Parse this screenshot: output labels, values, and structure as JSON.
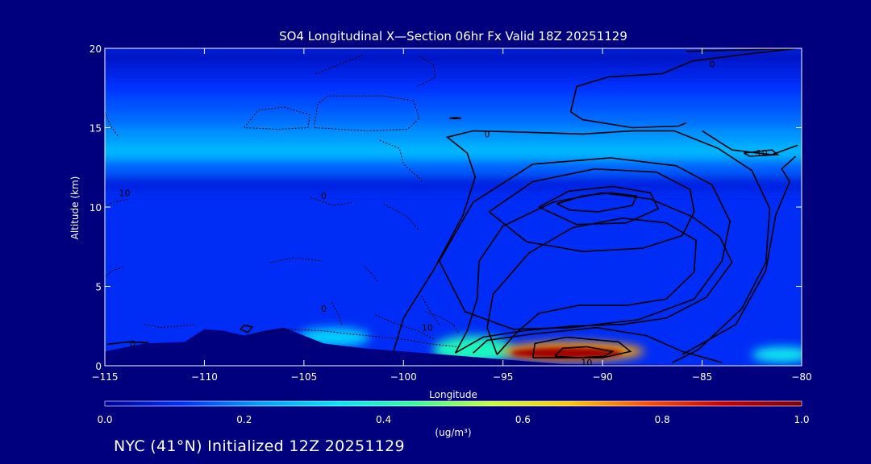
{
  "chart_data": {
    "type": "heatmap",
    "title": "SO4 Longitudinal X—Section 06hr  Fx Valid 18Z 20251129",
    "xlabel": "Longitude",
    "ylabel": "Altitude (km)",
    "xlim": [
      -115,
      -80
    ],
    "ylim": [
      0,
      20
    ],
    "x_ticks": [
      -115,
      -110,
      -105,
      -100,
      -95,
      -90,
      -85,
      -80
    ],
    "x_tick_labels": [
      "−115",
      "−110",
      "−105",
      "−100",
      "−95",
      "−90",
      "−85",
      "−80"
    ],
    "y_ticks": [
      0,
      5,
      10,
      15,
      20
    ],
    "y_tick_labels": [
      "0",
      "5",
      "10",
      "15",
      "20"
    ],
    "colorbar": {
      "min": 0.0,
      "max": 1.0,
      "ticks": [
        0.0,
        0.2,
        0.4,
        0.6,
        0.8,
        1.0
      ],
      "tick_labels": [
        "0.0",
        "0.2",
        "0.4",
        "0.6",
        "0.8",
        "1.0"
      ],
      "unit_label": "(ug/m³)",
      "colors": [
        "#000096",
        "#0032ff",
        "#00a0ff",
        "#00e6ff",
        "#32ff96",
        "#c8ff32",
        "#ffc800",
        "#ff5000",
        "#c80000",
        "#800000"
      ]
    },
    "concentration_bands": [
      {
        "altitude": 19.5,
        "value": 0.05
      },
      {
        "altitude": 18.5,
        "value": 0.08
      },
      {
        "altitude": 17.5,
        "value": 0.11
      },
      {
        "altitude": 16.5,
        "value": 0.14
      },
      {
        "altitude": 15.5,
        "value": 0.17
      },
      {
        "altitude": 14.5,
        "value": 0.21
      },
      {
        "altitude": 13.5,
        "value": 0.26
      },
      {
        "altitude": 12.5,
        "value": 0.16
      },
      {
        "altitude": 11.5,
        "value": 0.08
      }
    ],
    "hotspots": [
      {
        "lon": -91.8,
        "alt": 0.8,
        "value": 0.95,
        "lon_radius": 2.8,
        "alt_radius": 0.35
      },
      {
        "lon": -91.5,
        "alt": 0.9,
        "value": 0.7,
        "lon_radius": 3.6,
        "alt_radius": 0.6
      },
      {
        "lon": -96.5,
        "alt": 1.0,
        "value": 0.4,
        "lon_radius": 2.0,
        "alt_radius": 0.9
      },
      {
        "lon": -103.5,
        "alt": 1.8,
        "value": 0.3,
        "lon_radius": 1.8,
        "alt_radius": 0.6
      },
      {
        "lon": -81.0,
        "alt": 0.7,
        "value": 0.35,
        "lon_radius": 1.5,
        "alt_radius": 0.5
      }
    ],
    "terrain": [
      [
        -115,
        0.9
      ],
      [
        -113,
        1.4
      ],
      [
        -111,
        1.5
      ],
      [
        -110,
        2.3
      ],
      [
        -109,
        2.2
      ],
      [
        -108,
        1.9
      ],
      [
        -107,
        2.2
      ],
      [
        -106,
        2.4
      ],
      [
        -105,
        1.9
      ],
      [
        -104,
        1.4
      ],
      [
        -102,
        1.1
      ],
      [
        -100,
        0.9
      ],
      [
        -97,
        0.6
      ],
      [
        -94,
        0.3
      ],
      [
        -92,
        0.1
      ],
      [
        -80,
        0.0
      ]
    ],
    "contour_labels": [
      {
        "text": "0",
        "lon": -84.5,
        "alt": 19.0
      },
      {
        "text": "0",
        "lon": -95.8,
        "alt": 14.6
      },
      {
        "text": "10",
        "lon": -82.0,
        "alt": 13.4
      },
      {
        "text": "10",
        "lon": -114.0,
        "alt": 10.9
      },
      {
        "text": "0",
        "lon": -104.0,
        "alt": 10.7
      },
      {
        "text": "0",
        "lon": -104.0,
        "alt": 3.6
      },
      {
        "text": "0",
        "lon": -113.6,
        "alt": 1.4
      },
      {
        "text": "10",
        "lon": -98.8,
        "alt": 2.4
      },
      {
        "text": "10",
        "lon": -90.8,
        "alt": 0.2
      }
    ],
    "contours_solid": [
      [
        [
          -85.8,
          19.8
        ],
        [
          -80.2,
          20.0
        ]
      ],
      [
        [
          -96.5,
          0.8
        ],
        [
          -95.8,
          1.6
        ],
        [
          -93.5,
          2.0
        ],
        [
          -90.3,
          2.4
        ],
        [
          -87.8,
          1.9
        ],
        [
          -86.0,
          0.9
        ],
        [
          -84.0,
          0.2
        ]
      ],
      [
        [
          -97.4,
          0.8
        ],
        [
          -96.8,
          2.2
        ],
        [
          -96.3,
          4.2
        ],
        [
          -96.2,
          6.6
        ],
        [
          -95.0,
          8.8
        ],
        [
          -92.5,
          10.3
        ],
        [
          -90.0,
          10.9
        ],
        [
          -87.6,
          10.5
        ],
        [
          -85.5,
          9.4
        ],
        [
          -84.1,
          8.1
        ],
        [
          -83.5,
          6.5
        ],
        [
          -84.8,
          4.3
        ],
        [
          -86.8,
          3.0
        ],
        [
          -89.0,
          2.6
        ],
        [
          -91.5,
          2.5
        ],
        [
          -94.0,
          2.2
        ],
        [
          -96.0,
          1.8
        ],
        [
          -97.4,
          0.8
        ]
      ],
      [
        [
          -95.3,
          0.7
        ],
        [
          -95.8,
          2.4
        ],
        [
          -95.5,
          4.5
        ],
        [
          -93.7,
          7.1
        ],
        [
          -91.5,
          8.7
        ],
        [
          -89.0,
          9.3
        ],
        [
          -86.8,
          9.0
        ],
        [
          -85.3,
          7.9
        ],
        [
          -85.4,
          5.9
        ],
        [
          -86.8,
          4.2
        ],
        [
          -88.8,
          3.8
        ],
        [
          -91.2,
          3.8
        ],
        [
          -93.2,
          3.3
        ],
        [
          -94.3,
          2.1
        ],
        [
          -95.3,
          0.7
        ]
      ],
      [
        [
          -92.3,
          10.2
        ],
        [
          -91.0,
          10.7
        ],
        [
          -89.6,
          10.9
        ],
        [
          -88.3,
          10.7
        ],
        [
          -88.5,
          10.1
        ],
        [
          -90.2,
          9.7
        ],
        [
          -91.6,
          9.8
        ],
        [
          -92.3,
          10.2
        ]
      ],
      [
        [
          -93.2,
          10.0
        ],
        [
          -91.7,
          11.0
        ],
        [
          -89.5,
          11.3
        ],
        [
          -87.6,
          10.9
        ],
        [
          -87.2,
          9.9
        ],
        [
          -88.8,
          9.0
        ],
        [
          -91.3,
          8.9
        ],
        [
          -93.2,
          10.0
        ]
      ],
      [
        [
          -95.7,
          9.7
        ],
        [
          -93.5,
          11.6
        ],
        [
          -90.4,
          12.4
        ],
        [
          -87.3,
          12.2
        ],
        [
          -85.6,
          11.1
        ],
        [
          -85.4,
          9.7
        ],
        [
          -86.0,
          8.2
        ],
        [
          -88.0,
          7.4
        ],
        [
          -91.0,
          7.2
        ],
        [
          -93.8,
          7.8
        ],
        [
          -95.7,
          9.7
        ]
      ],
      [
        [
          -98.2,
          6.6
        ],
        [
          -96.5,
          10.3
        ],
        [
          -93.5,
          12.7
        ],
        [
          -89.6,
          13.1
        ],
        [
          -86.3,
          12.6
        ],
        [
          -84.5,
          11.4
        ],
        [
          -83.6,
          9.1
        ],
        [
          -84.0,
          6.6
        ],
        [
          -85.4,
          4.2
        ],
        [
          -88.2,
          2.9
        ],
        [
          -91.6,
          2.4
        ],
        [
          -94.5,
          2.3
        ],
        [
          -96.9,
          3.4
        ],
        [
          -98.2,
          6.6
        ]
      ],
      [
        [
          -100.5,
          0.9
        ],
        [
          -100.0,
          3.0
        ],
        [
          -98.5,
          6.0
        ],
        [
          -97.0,
          9.5
        ],
        [
          -96.4,
          11.9
        ],
        [
          -96.8,
          13.4
        ],
        [
          -97.8,
          14.4
        ],
        [
          -96.5,
          14.8
        ],
        [
          -93.5,
          14.7
        ],
        [
          -91.0,
          14.6
        ],
        [
          -88.5,
          14.8
        ],
        [
          -86.4,
          14.8
        ],
        [
          -84.2,
          13.7
        ],
        [
          -82.5,
          12.3
        ],
        [
          -81.6,
          9.9
        ],
        [
          -81.8,
          6.5
        ],
        [
          -83.0,
          3.6
        ],
        [
          -85.2,
          1.0
        ],
        [
          -86.5,
          0.2
        ]
      ],
      [
        [
          -85.0,
          14.8
        ],
        [
          -83.5,
          13.6
        ],
        [
          -81.5,
          13.3
        ],
        [
          -80.2,
          13.9
        ]
      ],
      [
        [
          -80.3,
          13.2
        ],
        [
          -81.0,
          12.4
        ],
        [
          -80.6,
          11.6
        ],
        [
          -81.3,
          9.5
        ],
        [
          -81.8,
          6.0
        ],
        [
          -83.3,
          2.6
        ],
        [
          -86.0,
          0.7
        ]
      ],
      [
        [
          -82.9,
          13.4
        ],
        [
          -81.5,
          13.6
        ],
        [
          -81.2,
          13.3
        ],
        [
          -82.6,
          13.2
        ],
        [
          -82.9,
          13.4
        ]
      ],
      [
        [
          -91.6,
          16.0
        ],
        [
          -91.3,
          17.6
        ],
        [
          -89.7,
          18.2
        ],
        [
          -87.0,
          18.4
        ],
        [
          -85.5,
          19.2
        ],
        [
          -83.0,
          19.6
        ],
        [
          -80.2,
          20.0
        ]
      ],
      [
        [
          -91.6,
          16.0
        ],
        [
          -91.0,
          15.5
        ],
        [
          -88.5,
          15.0
        ],
        [
          -86.2,
          15.1
        ],
        [
          -85.8,
          15.3
        ]
      ],
      [
        [
          -97.7,
          15.6
        ],
        [
          -97.4,
          15.63
        ],
        [
          -97.1,
          15.6
        ],
        [
          -97.4,
          15.57
        ],
        [
          -97.7,
          15.6
        ]
      ],
      [
        [
          -108.2,
          2.3
        ],
        [
          -108.0,
          2.55
        ],
        [
          -107.6,
          2.45
        ],
        [
          -107.8,
          2.1
        ],
        [
          -108.2,
          2.3
        ]
      ],
      [
        [
          -92.4,
          0.6
        ],
        [
          -92.0,
          1.1
        ],
        [
          -90.8,
          1.2
        ],
        [
          -89.5,
          0.9
        ],
        [
          -89.9,
          0.6
        ],
        [
          -91.2,
          0.5
        ],
        [
          -92.4,
          0.6
        ]
      ],
      [
        [
          -93.5,
          0.5
        ],
        [
          -93.4,
          1.4
        ],
        [
          -91.8,
          1.8
        ],
        [
          -89.2,
          1.5
        ],
        [
          -88.6,
          0.9
        ],
        [
          -90.0,
          0.5
        ],
        [
          -93.5,
          0.5
        ]
      ],
      [
        [
          -114.9,
          1.35
        ],
        [
          -113.8,
          1.5
        ],
        [
          -112.8,
          1.45
        ]
      ]
    ],
    "contours_dotted": [
      [
        [
          -108.0,
          15.0
        ],
        [
          -107.3,
          16.1
        ],
        [
          -106.0,
          16.3
        ],
        [
          -104.7,
          15.8
        ],
        [
          -104.8,
          15.0
        ],
        [
          -106.3,
          14.9
        ],
        [
          -108.0,
          15.0
        ]
      ],
      [
        [
          -104.5,
          15.0
        ],
        [
          -104.3,
          16.5
        ],
        [
          -103.8,
          17.0
        ],
        [
          -101.0,
          17.0
        ],
        [
          -99.5,
          16.7
        ],
        [
          -99.2,
          15.6
        ],
        [
          -99.8,
          14.9
        ],
        [
          -101.8,
          14.8
        ],
        [
          -104.5,
          15.0
        ]
      ],
      [
        [
          -104.4,
          18.4
        ],
        [
          -103.2,
          19.0
        ],
        [
          -102.0,
          19.6
        ]
      ],
      [
        [
          -99.2,
          19.5
        ],
        [
          -98.5,
          19.0
        ],
        [
          -98.4,
          18.2
        ],
        [
          -99.3,
          17.6
        ]
      ],
      [
        [
          -101.2,
          14.2
        ],
        [
          -100.2,
          13.7
        ],
        [
          -100.0,
          12.7
        ],
        [
          -99.0,
          11.6
        ]
      ],
      [
        [
          -101.0,
          10.2
        ],
        [
          -99.8,
          9.4
        ],
        [
          -99.2,
          8.5
        ]
      ],
      [
        [
          -104.7,
          10.6
        ],
        [
          -103.5,
          10.1
        ],
        [
          -102.5,
          10.3
        ]
      ],
      [
        [
          -106.7,
          6.5
        ],
        [
          -105.5,
          6.8
        ],
        [
          -104.1,
          6.6
        ]
      ],
      [
        [
          -102.0,
          6.3
        ],
        [
          -101.6,
          5.8
        ],
        [
          -101.3,
          5.3
        ]
      ],
      [
        [
          -103.6,
          4.0
        ],
        [
          -103.3,
          3.3
        ],
        [
          -103.1,
          2.6
        ]
      ],
      [
        [
          -107.7,
          1.9
        ],
        [
          -106.8,
          2.1
        ],
        [
          -105.9,
          2.3
        ],
        [
          -104.0,
          2.2
        ],
        [
          -102.7,
          2.0
        ],
        [
          -101.0,
          1.8
        ],
        [
          -99.6,
          1.6
        ],
        [
          -98.8,
          1.4
        ],
        [
          -97.3,
          1.2
        ]
      ],
      [
        [
          -101.4,
          3.2
        ],
        [
          -100.5,
          2.7
        ],
        [
          -99.3,
          2.2
        ],
        [
          -98.5,
          1.7
        ]
      ],
      [
        [
          -98.9,
          3.4
        ],
        [
          -98.2,
          3.1
        ],
        [
          -97.5,
          2.6
        ],
        [
          -97.2,
          2.0
        ]
      ],
      [
        [
          -99.1,
          4.4
        ],
        [
          -98.6,
          3.3
        ],
        [
          -98.2,
          2.6
        ]
      ],
      [
        [
          -115.0,
          16.0
        ],
        [
          -114.7,
          15.1
        ],
        [
          -114.3,
          14.4
        ]
      ],
      [
        [
          -115.0,
          10.0
        ],
        [
          -114.6,
          10.3
        ],
        [
          -113.8,
          10.5
        ]
      ],
      [
        [
          -115.0,
          5.6
        ],
        [
          -114.6,
          6.0
        ],
        [
          -114.1,
          6.2
        ]
      ],
      [
        [
          -113.0,
          2.6
        ],
        [
          -112.2,
          2.4
        ],
        [
          -111.3,
          2.5
        ],
        [
          -110.5,
          2.6
        ]
      ]
    ]
  },
  "footer": {
    "text": "NYC (41°N) Initialized 12Z 20251129"
  },
  "colors": {
    "background": "#00007f",
    "text": "#ffffff",
    "contour": "#000000",
    "terrain": "#00007f"
  }
}
